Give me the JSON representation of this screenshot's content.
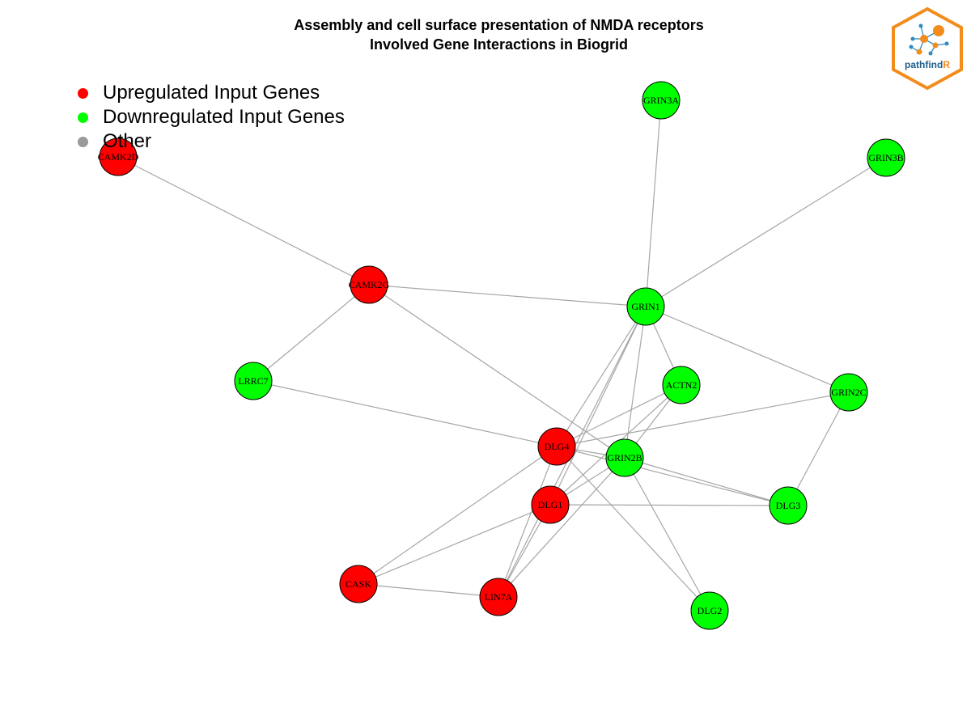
{
  "title": {
    "line1": "Assembly and cell surface presentation of NMDA receptors",
    "line2": "Involved Gene Interactions in Biogrid"
  },
  "legend": [
    {
      "label": "Upregulated Input Genes",
      "color": "#ff0000"
    },
    {
      "label": "Downregulated Input Genes",
      "color": "#00ff00"
    },
    {
      "label": "Other",
      "color": "#999999"
    }
  ],
  "logo": {
    "text_main": "pathfind",
    "text_accent": "R",
    "accent_color": "#f28c1b",
    "text_color": "#1f5f8b"
  },
  "colors": {
    "up": "#ff0000",
    "down": "#00ff00",
    "edge": "#a6a6a6"
  },
  "nodes": [
    {
      "id": "CAMK2D",
      "status": "up"
    },
    {
      "id": "CAMK2G",
      "status": "up"
    },
    {
      "id": "GRIN3A",
      "status": "down"
    },
    {
      "id": "GRIN3B",
      "status": "down"
    },
    {
      "id": "GRIN1",
      "status": "down"
    },
    {
      "id": "LRRC7",
      "status": "down"
    },
    {
      "id": "ACTN2",
      "status": "down"
    },
    {
      "id": "GRIN2C",
      "status": "down"
    },
    {
      "id": "DLG4",
      "status": "up"
    },
    {
      "id": "GRIN2B",
      "status": "down"
    },
    {
      "id": "DLG1",
      "status": "up"
    },
    {
      "id": "DLG3",
      "status": "down"
    },
    {
      "id": "CASK",
      "status": "up"
    },
    {
      "id": "LIN7A",
      "status": "up"
    },
    {
      "id": "DLG2",
      "status": "down"
    }
  ],
  "edges": [
    [
      "CAMK2D",
      "CAMK2G"
    ],
    [
      "CAMK2G",
      "GRIN1"
    ],
    [
      "CAMK2G",
      "LRRC7"
    ],
    [
      "CAMK2G",
      "GRIN2B"
    ],
    [
      "GRIN3A",
      "GRIN1"
    ],
    [
      "GRIN3B",
      "GRIN1"
    ],
    [
      "GRIN1",
      "ACTN2"
    ],
    [
      "GRIN1",
      "GRIN2C"
    ],
    [
      "GRIN1",
      "DLG4"
    ],
    [
      "GRIN1",
      "DLG1"
    ],
    [
      "GRIN1",
      "GRIN2B"
    ],
    [
      "GRIN1",
      "LIN7A"
    ],
    [
      "LRRC7",
      "DLG4"
    ],
    [
      "ACTN2",
      "DLG4"
    ],
    [
      "ACTN2",
      "GRIN2B"
    ],
    [
      "ACTN2",
      "DLG1"
    ],
    [
      "GRIN2C",
      "DLG4"
    ],
    [
      "GRIN2C",
      "DLG3"
    ],
    [
      "DLG4",
      "GRIN2B"
    ],
    [
      "DLG4",
      "DLG3"
    ],
    [
      "DLG4",
      "DLG2"
    ],
    [
      "DLG4",
      "CASK"
    ],
    [
      "DLG4",
      "LIN7A"
    ],
    [
      "GRIN2B",
      "DLG3"
    ],
    [
      "GRIN2B",
      "DLG2"
    ],
    [
      "GRIN2B",
      "DLG1"
    ],
    [
      "GRIN2B",
      "LIN7A"
    ],
    [
      "DLG1",
      "DLG3"
    ],
    [
      "DLG1",
      "CASK"
    ],
    [
      "DLG1",
      "LIN7A"
    ],
    [
      "CASK",
      "LIN7A"
    ]
  ]
}
